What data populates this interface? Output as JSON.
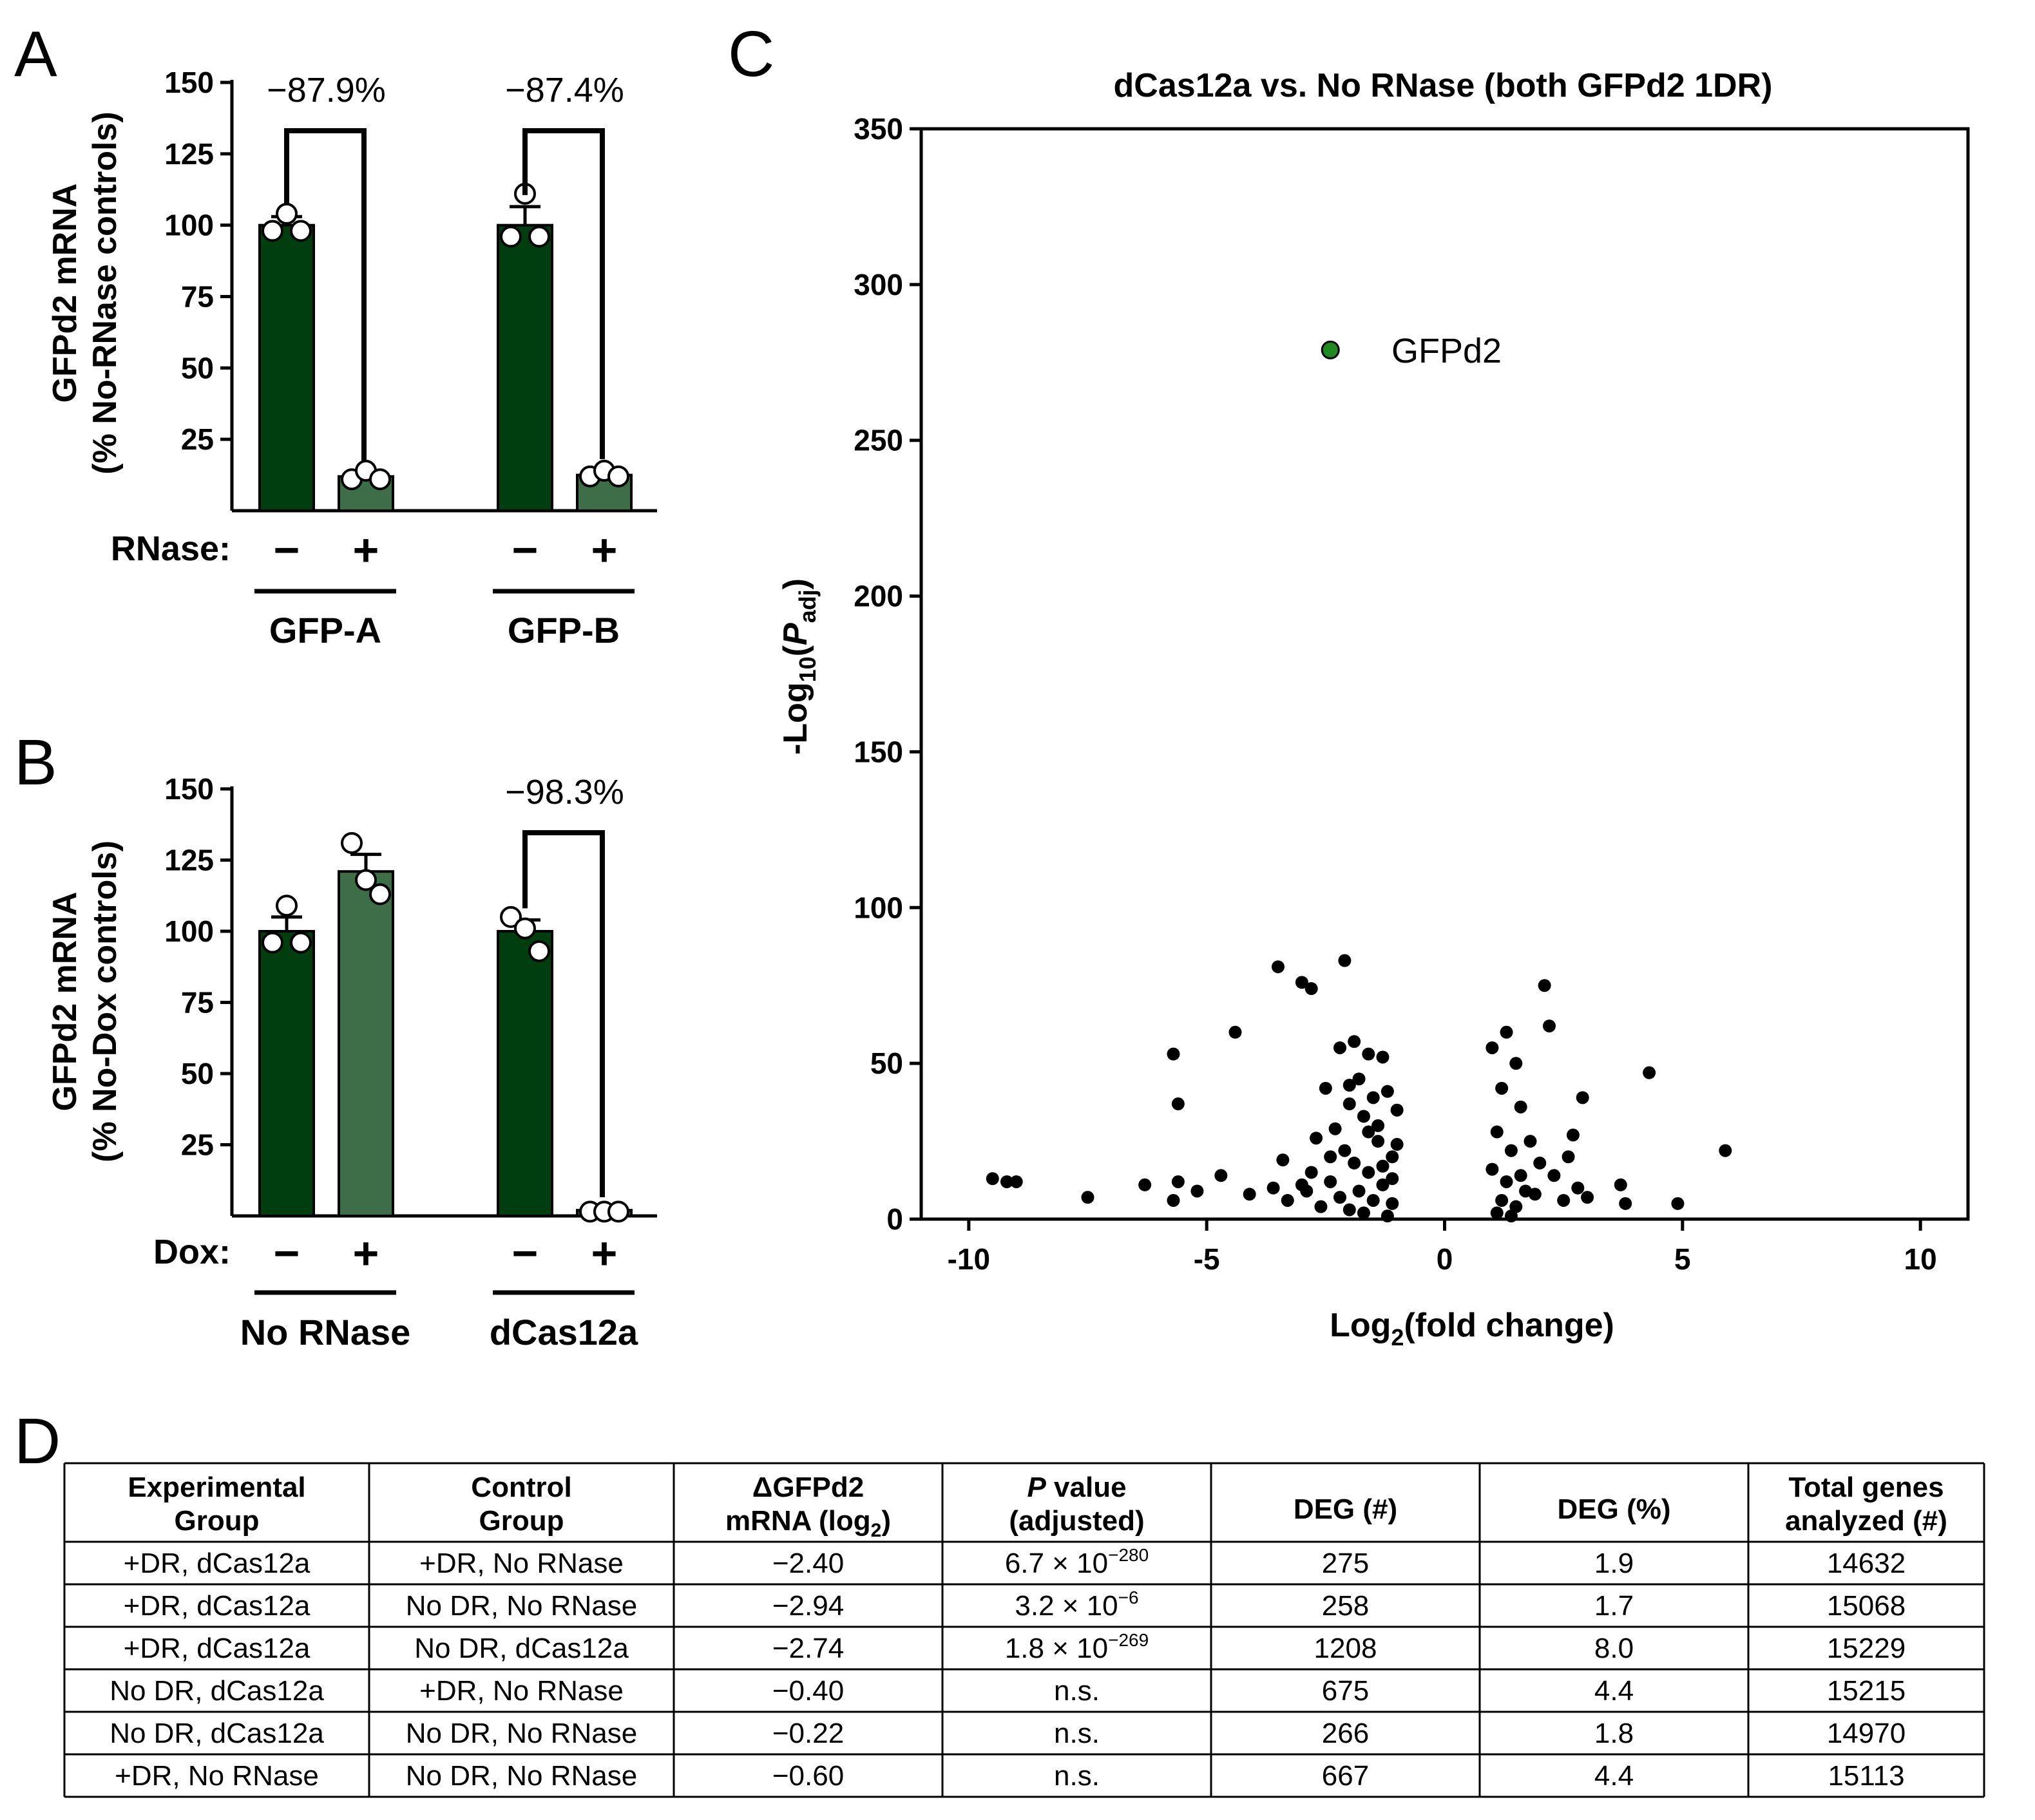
{
  "panels": {
    "A": {
      "letter": "A",
      "ylabel_line1": "GFPd2 mRNA",
      "ylabel_line2": "(% No-RNase controls)",
      "condition_label": "RNase:",
      "signs": [
        "−",
        "+",
        "−",
        "+"
      ],
      "groups": [
        "GFP-A",
        "GFP-B"
      ],
      "annotations": [
        "−87.9%",
        "−87.4%"
      ]
    },
    "B": {
      "letter": "B",
      "ylabel_line1": "GFPd2 mRNA",
      "ylabel_line2": "(% No-Dox controls)",
      "condition_label": "Dox:",
      "signs": [
        "−",
        "+",
        "−",
        "+"
      ],
      "groups": [
        "No RNase",
        "dCas12a"
      ],
      "annotations": [
        "−98.3%"
      ]
    },
    "C": {
      "letter": "C",
      "title": "dCas12a vs. No RNase (both GFPd2 1DR)",
      "highlight_label": "GFPd2",
      "xlabel_main": "Log",
      "xlabel_sub": "2",
      "xlabel_rest": "(fold change)",
      "ylabel_main": "-Log",
      "ylabel_sub": "10",
      "ylabel_open": "(",
      "ylabel_p": "P",
      "ylabel_psub": "adj",
      "ylabel_close": ")"
    },
    "D": {
      "letter": "D",
      "headers": [
        [
          "Experimental",
          "Group"
        ],
        [
          "Control",
          "Group"
        ],
        [
          "ΔGFPd2",
          "mRNA (log",
          "2",
          ")"
        ],
        [
          "P",
          " value",
          "(adjusted)"
        ],
        [
          "DEG (#)"
        ],
        [
          "DEG (%)"
        ],
        [
          "Total genes",
          "analyzed (#)"
        ]
      ],
      "rows": [
        {
          "exp": "+DR, dCas12a",
          "ctrl": "+DR, No RNase",
          "delta": "−2.40",
          "p_base": "6.7 × 10",
          "p_exp": "−280",
          "deg_n": "275",
          "deg_pct": "1.9",
          "total": "14632"
        },
        {
          "exp": "+DR, dCas12a",
          "ctrl": "No DR, No RNase",
          "delta": "−2.94",
          "p_base": "3.2 × 10",
          "p_exp": "−6",
          "deg_n": "258",
          "deg_pct": "1.7",
          "total": "15068"
        },
        {
          "exp": "+DR, dCas12a",
          "ctrl": "No DR, dCas12a",
          "delta": "−2.74",
          "p_base": "1.8 × 10",
          "p_exp": "−269",
          "deg_n": "1208",
          "deg_pct": "8.0",
          "total": "15229"
        },
        {
          "exp": "No DR, dCas12a",
          "ctrl": "+DR, No RNase",
          "delta": "−0.40",
          "p_base": "n.s.",
          "p_exp": "",
          "deg_n": "675",
          "deg_pct": "4.4",
          "total": "15215"
        },
        {
          "exp": "No DR, dCas12a",
          "ctrl": "No DR, No RNase",
          "delta": "−0.22",
          "p_base": "n.s.",
          "p_exp": "",
          "deg_n": "266",
          "deg_pct": "1.8",
          "total": "14970"
        },
        {
          "exp": "+DR, No RNase",
          "ctrl": "No DR, No RNase",
          "delta": "−0.60",
          "p_base": "n.s.",
          "p_exp": "",
          "deg_n": "667",
          "deg_pct": "4.4",
          "total": "15113"
        }
      ]
    }
  },
  "colors": {
    "dark_green": "#003d0f",
    "light_green": "#3e6e47",
    "highlight_green": "#1f8a1f",
    "point": "#000000"
  },
  "chart_data": [
    {
      "id": "A",
      "type": "bar",
      "ylabel": "GFPd2 mRNA (% No-RNase controls)",
      "ylim": [
        0,
        150
      ],
      "yticks": [
        25,
        50,
        75,
        100,
        125,
        150
      ],
      "categories": [
        "GFP-A RNase −",
        "GFP-A RNase +",
        "GFP-B RNase −",
        "GFP-B RNase +"
      ],
      "values": [
        100,
        12,
        100,
        12.5
      ],
      "errors": [
        3,
        1.5,
        6.5,
        1.5
      ],
      "points": [
        [
          98,
          104,
          98
        ],
        [
          11,
          14,
          11
        ],
        [
          96,
          111,
          96
        ],
        [
          12,
          14,
          12
        ]
      ],
      "annotations": [
        {
          "text": "−87.9%",
          "between": [
            0,
            1
          ]
        },
        {
          "text": "−87.4%",
          "between": [
            2,
            3
          ]
        }
      ]
    },
    {
      "id": "B",
      "type": "bar",
      "ylabel": "GFPd2 mRNA (% No-Dox controls)",
      "ylim": [
        0,
        150
      ],
      "yticks": [
        25,
        50,
        75,
        100,
        125,
        150
      ],
      "categories": [
        "No RNase Dox −",
        "No RNase Dox +",
        "dCas12a Dox −",
        "dCas12a Dox +"
      ],
      "values": [
        100,
        121,
        100,
        2
      ],
      "errors": [
        5,
        6,
        4,
        0.5
      ],
      "points": [
        [
          96,
          109,
          96
        ],
        [
          131,
          118,
          113
        ],
        [
          105,
          101,
          93
        ],
        [
          1.5,
          1.5,
          1.5
        ]
      ],
      "annotations": [
        {
          "text": "−98.3%",
          "between": [
            2,
            3
          ]
        }
      ]
    },
    {
      "id": "C",
      "type": "scatter",
      "title": "dCas12a vs. No RNase (both GFPd2 1DR)",
      "xlabel": "Log2(fold change)",
      "ylabel": "-Log10(Padj)",
      "xlim": [
        -11,
        11
      ],
      "ylim": [
        0,
        350
      ],
      "xticks": [
        -10,
        -5,
        0,
        5,
        10
      ],
      "yticks": [
        0,
        50,
        100,
        150,
        200,
        250,
        300,
        350
      ],
      "highlight": {
        "name": "GFPd2",
        "x": -2.4,
        "y": 279
      },
      "points": [
        [
          -3.5,
          81
        ],
        [
          -3.0,
          76
        ],
        [
          -2.8,
          74
        ],
        [
          -2.1,
          83
        ],
        [
          2.1,
          75
        ],
        [
          2.2,
          62
        ],
        [
          -4.4,
          60
        ],
        [
          -5.7,
          53
        ],
        [
          -5.6,
          37
        ],
        [
          -3.4,
          19
        ],
        [
          -3.6,
          10
        ],
        [
          -4.1,
          8
        ],
        [
          -4.7,
          14
        ],
        [
          -5.2,
          9
        ],
        [
          -5.6,
          12
        ],
        [
          -6.3,
          11
        ],
        [
          -7.5,
          7
        ],
        [
          -9.5,
          13
        ],
        [
          -9.2,
          12
        ],
        [
          -9.0,
          12
        ],
        [
          -5.7,
          6
        ],
        [
          -3.3,
          6
        ],
        [
          -3.0,
          11
        ],
        [
          -1.9,
          57
        ],
        [
          -1.6,
          53
        ],
        [
          -2.2,
          55
        ],
        [
          -1.3,
          52
        ],
        [
          -2.0,
          43
        ],
        [
          -1.8,
          45
        ],
        [
          -1.5,
          39
        ],
        [
          -2.5,
          42
        ],
        [
          -1.2,
          41
        ],
        [
          -1.7,
          33
        ],
        [
          -2.3,
          29
        ],
        [
          -1.4,
          25
        ],
        [
          -2.1,
          22
        ],
        [
          -1.1,
          20
        ],
        [
          -2.7,
          26
        ],
        [
          -1.9,
          18
        ],
        [
          -1.6,
          15
        ],
        [
          -2.4,
          12
        ],
        [
          -1.3,
          11
        ],
        [
          -1.8,
          9
        ],
        [
          -2.2,
          7
        ],
        [
          -1.5,
          6
        ],
        [
          -2.9,
          9
        ],
        [
          -1.1,
          5
        ],
        [
          -2.0,
          3
        ],
        [
          -1.7,
          2
        ],
        [
          -1.2,
          1
        ],
        [
          -2.6,
          4
        ],
        [
          -1.4,
          30
        ],
        [
          -2.8,
          15
        ],
        [
          -1.0,
          35
        ],
        [
          -1.1,
          13
        ],
        [
          -2.0,
          37
        ],
        [
          -1.6,
          28
        ],
        [
          -1.0,
          24
        ],
        [
          -1.3,
          17
        ],
        [
          -2.4,
          20
        ],
        [
          1.0,
          55
        ],
        [
          1.3,
          60
        ],
        [
          1.5,
          50
        ],
        [
          1.2,
          42
        ],
        [
          1.6,
          36
        ],
        [
          1.1,
          28
        ],
        [
          1.4,
          22
        ],
        [
          1.8,
          25
        ],
        [
          1.0,
          16
        ],
        [
          1.3,
          12
        ],
        [
          1.7,
          9
        ],
        [
          1.2,
          6
        ],
        [
          1.5,
          4
        ],
        [
          2.0,
          18
        ],
        [
          1.9,
          8
        ],
        [
          2.3,
          14
        ],
        [
          2.6,
          20
        ],
        [
          2.8,
          10
        ],
        [
          3.0,
          7
        ],
        [
          2.5,
          6
        ],
        [
          2.9,
          39
        ],
        [
          2.7,
          27
        ],
        [
          3.7,
          11
        ],
        [
          3.8,
          5
        ],
        [
          4.3,
          47
        ],
        [
          4.9,
          5
        ],
        [
          5.9,
          22
        ],
        [
          1.1,
          2
        ],
        [
          1.4,
          1
        ],
        [
          1.6,
          14
        ]
      ]
    }
  ]
}
